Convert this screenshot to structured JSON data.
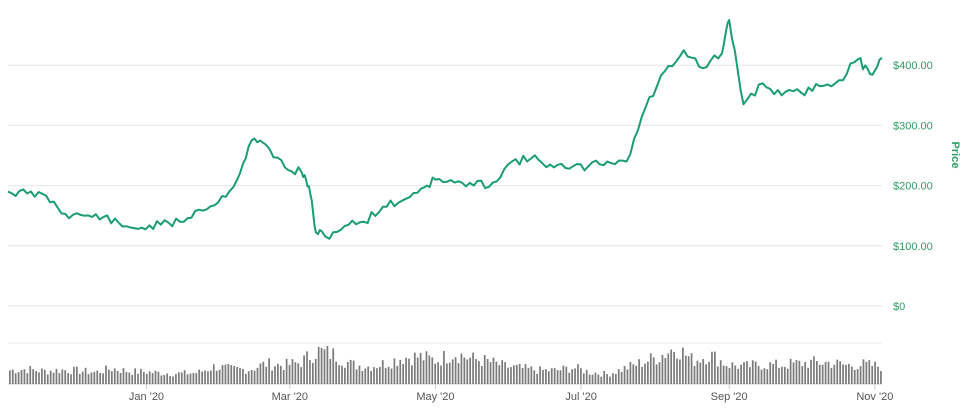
{
  "chart_data": {
    "type": "line",
    "title": "",
    "xlabel": "",
    "ylabel": "Price",
    "x_tick_labels": [
      "Jan '20",
      "Mar '20",
      "May '20",
      "Jul '20",
      "Sep '20",
      "Nov '20"
    ],
    "x_tick_dates": [
      "2020-01-01",
      "2020-03-01",
      "2020-05-01",
      "2020-07-01",
      "2020-09-01",
      "2020-11-01"
    ],
    "x_range": [
      "2019-11-04",
      "2020-11-04"
    ],
    "y_tick_labels": [
      "$0",
      "$100.00",
      "$200.00",
      "$300.00",
      "$400.00"
    ],
    "y_tick_values": [
      0,
      100,
      200,
      300,
      400
    ],
    "ylim": [
      0,
      500
    ],
    "grid": true,
    "legend": "none",
    "series": [
      {
        "name": "",
        "color": "#1a9e6e",
        "points": [
          [
            "2019-11-04",
            190
          ],
          [
            "2019-11-12",
            187
          ],
          [
            "2019-11-20",
            183
          ],
          [
            "2019-11-28",
            153
          ],
          [
            "2019-12-06",
            150
          ],
          [
            "2019-12-14",
            148
          ],
          [
            "2019-12-22",
            132
          ],
          [
            "2019-12-30",
            130
          ],
          [
            "2020-01-07",
            135
          ],
          [
            "2020-01-15",
            140
          ],
          [
            "2020-01-23",
            160
          ],
          [
            "2020-01-31",
            172
          ],
          [
            "2020-02-08",
            210
          ],
          [
            "2020-02-14",
            275
          ],
          [
            "2020-02-20",
            268
          ],
          [
            "2020-02-28",
            230
          ],
          [
            "2020-03-06",
            222
          ],
          [
            "2020-03-09",
            199
          ],
          [
            "2020-03-12",
            122
          ],
          [
            "2020-03-16",
            115
          ],
          [
            "2020-03-24",
            133
          ],
          [
            "2020-04-01",
            140
          ],
          [
            "2020-04-09",
            165
          ],
          [
            "2020-04-17",
            175
          ],
          [
            "2020-04-25",
            195
          ],
          [
            "2020-05-01",
            210
          ],
          [
            "2020-05-09",
            205
          ],
          [
            "2020-05-17",
            200
          ],
          [
            "2020-05-25",
            205
          ],
          [
            "2020-06-02",
            240
          ],
          [
            "2020-06-10",
            245
          ],
          [
            "2020-06-18",
            235
          ],
          [
            "2020-06-26",
            228
          ],
          [
            "2020-07-04",
            232
          ],
          [
            "2020-07-12",
            240
          ],
          [
            "2020-07-20",
            240
          ],
          [
            "2020-07-28",
            330
          ],
          [
            "2020-08-05",
            390
          ],
          [
            "2020-08-13",
            425
          ],
          [
            "2020-08-21",
            395
          ],
          [
            "2020-08-29",
            420
          ],
          [
            "2020-09-01",
            475
          ],
          [
            "2020-09-07",
            335
          ],
          [
            "2020-09-15",
            370
          ],
          [
            "2020-09-23",
            350
          ],
          [
            "2020-10-01",
            355
          ],
          [
            "2020-10-09",
            365
          ],
          [
            "2020-10-17",
            375
          ],
          [
            "2020-10-25",
            410
          ],
          [
            "2020-10-30",
            385
          ],
          [
            "2020-11-04",
            412
          ]
        ]
      }
    ],
    "volume": {
      "type": "bar",
      "relative_heights": [
        0.35,
        0.38,
        0.33,
        0.36,
        0.34,
        0.3,
        0.4,
        0.32,
        0.31,
        0.28,
        0.27,
        0.29,
        0.45,
        0.38,
        0.37,
        0.52,
        0.48,
        0.55,
        0.85,
        0.75,
        0.5,
        0.45,
        0.53,
        0.68,
        0.7,
        0.6,
        0.8,
        0.65,
        0.58,
        0.45,
        0.4,
        0.35,
        0.35,
        0.42,
        0.3,
        0.25,
        0.4,
        0.55,
        0.7,
        0.95,
        0.6,
        0.75,
        0.5,
        0.45,
        0.5,
        0.48,
        0.52,
        0.55,
        0.55,
        0.48,
        0.5,
        0.45
      ]
    }
  }
}
